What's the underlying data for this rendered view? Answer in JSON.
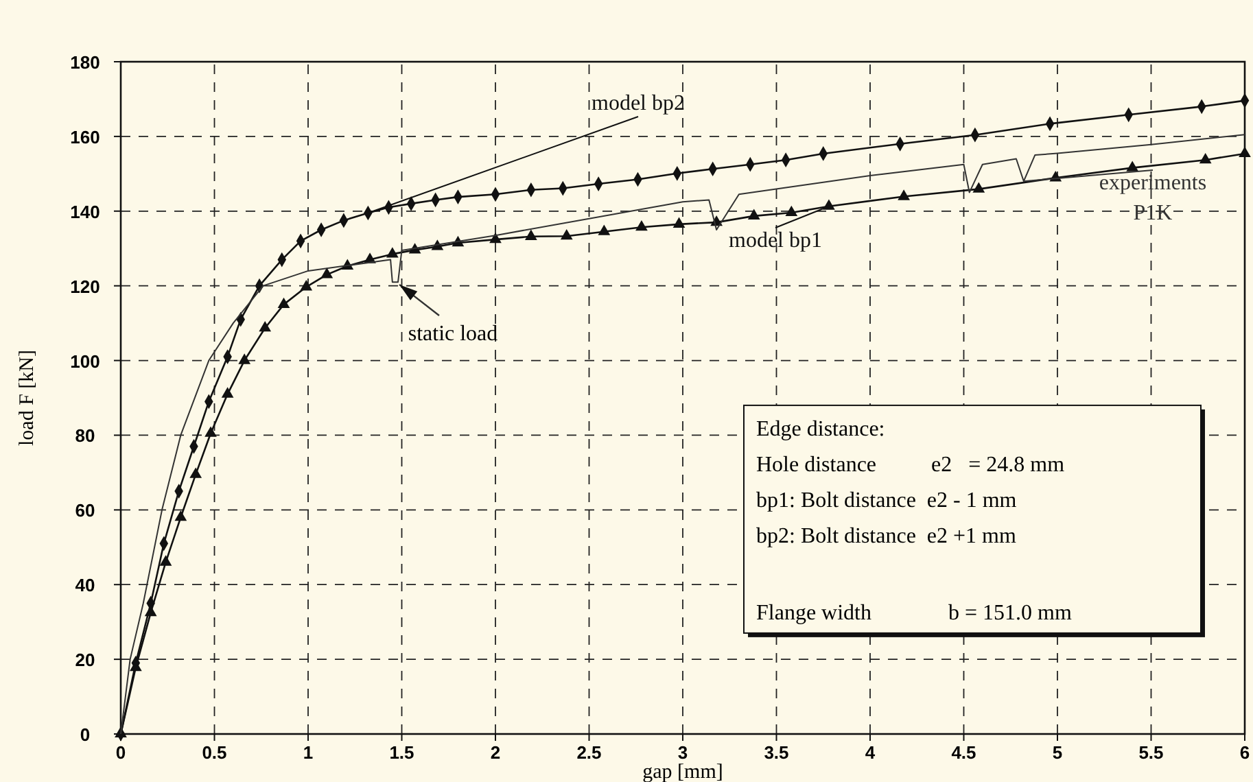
{
  "chart_data": {
    "type": "line",
    "xlabel": "gap [mm]",
    "ylabel": "load F [kN]",
    "xlim": [
      0,
      6
    ],
    "ylim": [
      0,
      180
    ],
    "xticks": [
      0,
      0.5,
      1,
      1.5,
      2,
      2.5,
      3,
      3.5,
      4,
      4.5,
      5,
      5.5,
      6
    ],
    "yticks": [
      0,
      20,
      40,
      60,
      80,
      100,
      120,
      140,
      160,
      180
    ],
    "grid": true,
    "series": [
      {
        "name": "model bp2",
        "color": "#111111",
        "marker": "diamond",
        "x": [
          0,
          0.08,
          0.16,
          0.23,
          0.31,
          0.39,
          0.47,
          0.57,
          0.64,
          0.74,
          0.86,
          0.96,
          1.07,
          1.19,
          1.32,
          1.43,
          1.55,
          1.68,
          1.8,
          2,
          2.19,
          2.36,
          2.55,
          2.76,
          2.97,
          3.16,
          3.36,
          3.55,
          3.75,
          4.16,
          4.56,
          4.96,
          5.38,
          5.77,
          6
        ],
        "values": [
          0,
          19,
          35,
          51,
          65,
          77,
          89,
          101,
          111,
          120,
          127,
          132,
          135,
          137.5,
          139.5,
          141,
          142,
          143,
          143.8,
          144.5,
          145.7,
          146.1,
          147.3,
          148.5,
          150.1,
          151.3,
          152.5,
          153.7,
          155.4,
          158,
          160.4,
          163.4,
          165.8,
          168,
          169.6
        ]
      },
      {
        "name": "model bp1",
        "color": "#111111",
        "marker": "triangle",
        "x": [
          0,
          0.08,
          0.16,
          0.24,
          0.32,
          0.4,
          0.48,
          0.57,
          0.66,
          0.77,
          0.87,
          0.99,
          1.1,
          1.21,
          1.33,
          1.45,
          1.57,
          1.69,
          1.8,
          2,
          2.19,
          2.38,
          2.58,
          2.78,
          2.98,
          3.18,
          3.38,
          3.58,
          3.78,
          4.18,
          4.58,
          4.99,
          5.4,
          5.79,
          6
        ],
        "values": [
          0,
          17.8,
          32.5,
          46,
          58,
          69.5,
          80.5,
          91,
          100,
          108.7,
          115,
          119.7,
          123,
          125.3,
          127,
          128.5,
          129.6,
          130.5,
          131.5,
          132.4,
          133.2,
          133.3,
          134.5,
          135.7,
          136.5,
          137,
          138.7,
          139.6,
          141.3,
          143.9,
          145.9,
          148.9,
          151.6,
          153.7,
          155.4
        ]
      },
      {
        "name": "experiments P1K",
        "color": "#333333",
        "marker": "none",
        "x": [
          0,
          0.05,
          0.12,
          0.22,
          0.32,
          0.47,
          0.6,
          0.76,
          1,
          1.44,
          1.45,
          1.48,
          1.5,
          2,
          2.5,
          3,
          3.14,
          3.18,
          3.3,
          4,
          4.5,
          4.53,
          4.6,
          4.78,
          4.82,
          4.88,
          5,
          5.5,
          6
        ],
        "values": [
          0,
          20,
          35,
          60,
          80,
          100,
          110,
          120,
          124,
          127,
          121,
          121,
          129.5,
          133.5,
          138,
          142.5,
          143,
          135,
          144.5,
          149.5,
          152.5,
          145,
          152.5,
          154,
          148,
          155,
          155.5,
          157.8,
          160.5
        ]
      }
    ],
    "annotations": [
      {
        "text": "static load",
        "x": 1.47,
        "y": 121
      },
      "Edge distance:",
      "Hole distance          e2   = 24.8 mm",
      "bp1: Bolt distance  e2 - 1 mm",
      "bp2: Bolt distance  e2 +1 mm",
      "Flange width              b = 151.0 mm"
    ]
  }
}
